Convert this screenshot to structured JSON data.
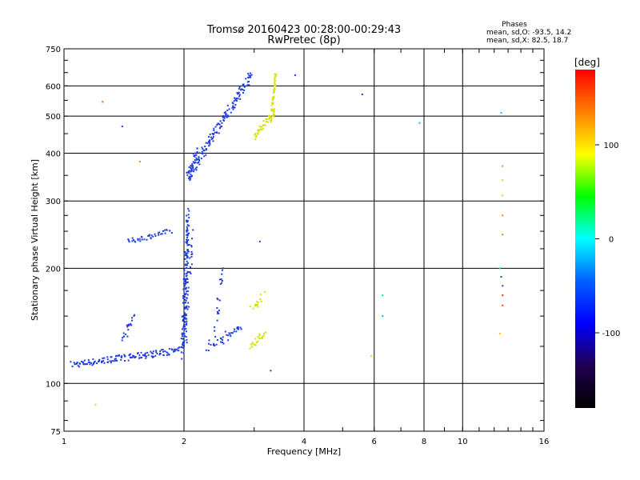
{
  "chart_data": {
    "type": "scatter",
    "title": "Tromsø 20160423 00:28:00-00:29:43",
    "subtitle": "RwPretec (8p)",
    "xlabel": "Frequency [MHz]",
    "ylabel": "Stationary phase Virtual Height [km]",
    "x_scale": "log",
    "y_scale": "log",
    "xlim": [
      1,
      16
    ],
    "ylim": [
      75,
      750
    ],
    "x_ticks": [
      1,
      2,
      4,
      6,
      8,
      10,
      16
    ],
    "x_tick_labels": [
      "1",
      "2",
      "4",
      "6",
      "8",
      "10",
      "16"
    ],
    "y_ticks": [
      75,
      100,
      200,
      300,
      400,
      500,
      600,
      750
    ],
    "y_tick_labels": [
      "75",
      "100",
      "200",
      "300",
      "400",
      "500",
      "600",
      "750"
    ],
    "grid": true,
    "legend": {
      "title": "Phases",
      "lines": [
        "mean, sd,O: -93.5, 14.2",
        "mean, sd,X:  82.5, 18.7"
      ]
    },
    "colorbar": {
      "label": "[deg]",
      "range": [
        -180,
        180
      ],
      "ticks": [
        100,
        0,
        -100
      ],
      "tick_labels": [
        "100",
        "0",
        "-100"
      ],
      "colors": [
        "#ff0000",
        "#ff8000",
        "#ffff00",
        "#00ff00",
        "#00ffff",
        "#0060ff",
        "#0000ff",
        "#200050",
        "#000000"
      ]
    },
    "series": [
      {
        "name": "O-mode",
        "phase_mean": -93.5,
        "color": "#1e3cdc"
      },
      {
        "name": "X-mode",
        "phase_mean": 82.5,
        "color": "#d8e000"
      }
    ]
  }
}
